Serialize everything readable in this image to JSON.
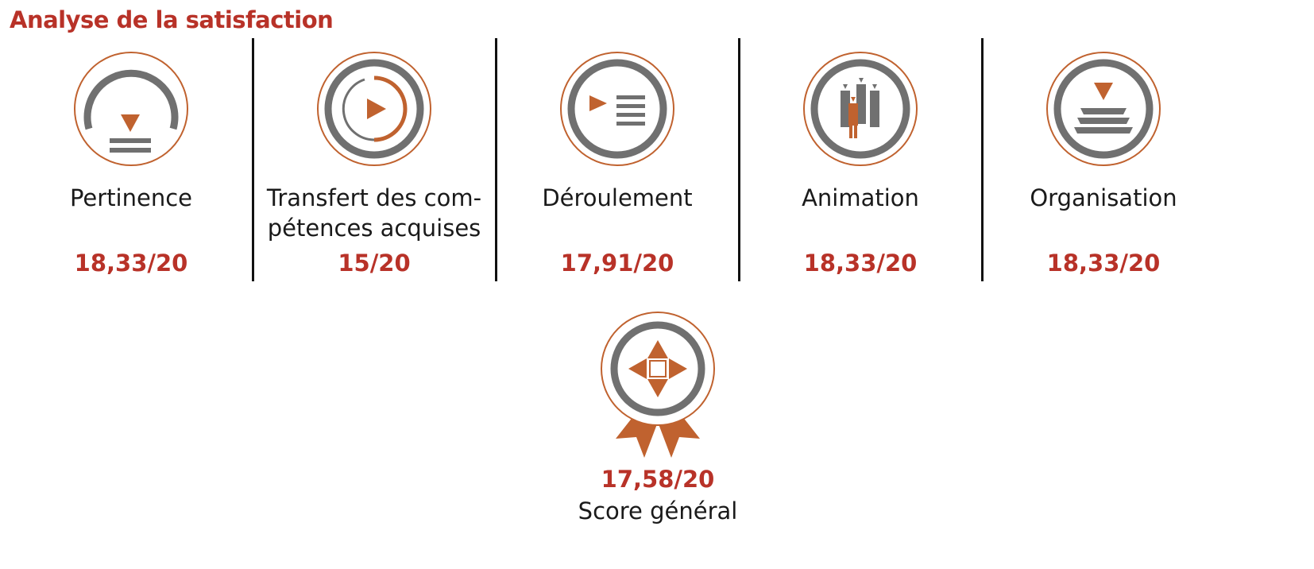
{
  "title": "Analyse de la satisfaction",
  "colors": {
    "accent": "#c0622f",
    "score": "#b83228",
    "grey": "#707070"
  },
  "criteria": [
    {
      "icon": "gauge-icon",
      "label": "Pertinence",
      "score": "18,33/20"
    },
    {
      "icon": "play-progress-icon",
      "label": "Transfert des com-\npétences acquises",
      "score": "15/20"
    },
    {
      "icon": "play-list-icon",
      "label": "Déroulement",
      "score": "17,91/20"
    },
    {
      "icon": "people-icon",
      "label": "Animation",
      "score": "18,33/20"
    },
    {
      "icon": "stack-layers-icon",
      "label": "Organisation",
      "score": "18,33/20"
    }
  ],
  "general": {
    "icon": "award-badge-icon",
    "score": "17,58/20",
    "label": "Score général"
  }
}
